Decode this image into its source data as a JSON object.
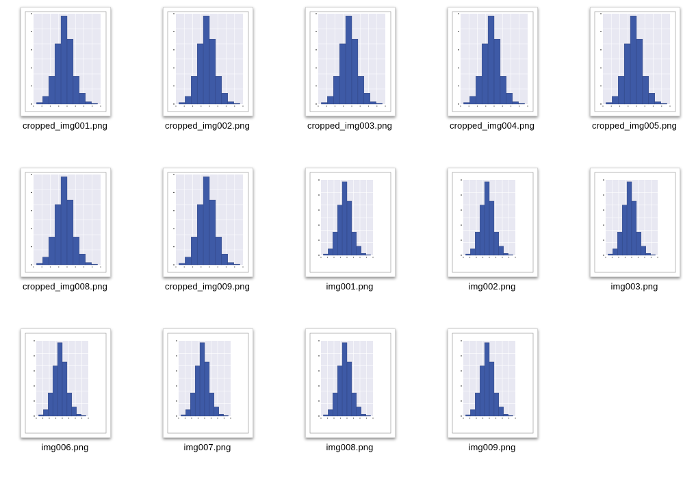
{
  "window": {
    "view_mode": "icon-grid"
  },
  "colors": {
    "bar": "#3e5aa6",
    "bar_edge": "#2b3f7a",
    "plot_bg": "#e8e8f2",
    "grid": "#ffffff",
    "frame": "#8a8a8a"
  },
  "histogram_shape": [
    0.01,
    0.05,
    0.18,
    0.39,
    0.57,
    0.42,
    0.18,
    0.07,
    0.015,
    0.004
  ],
  "files": [
    {
      "name": "cropped_img001.png",
      "variant": "cropped"
    },
    {
      "name": "cropped_img002.png",
      "variant": "cropped"
    },
    {
      "name": "cropped_img003.png",
      "variant": "cropped"
    },
    {
      "name": "cropped_img004.png",
      "variant": "cropped"
    },
    {
      "name": "cropped_img005.png",
      "variant": "cropped"
    },
    {
      "name": "cropped_img008.png",
      "variant": "cropped"
    },
    {
      "name": "cropped_img009.png",
      "variant": "cropped"
    },
    {
      "name": "img001.png",
      "variant": "full"
    },
    {
      "name": "img002.png",
      "variant": "full"
    },
    {
      "name": "img003.png",
      "variant": "full"
    },
    {
      "name": "img006.png",
      "variant": "full"
    },
    {
      "name": "img007.png",
      "variant": "full"
    },
    {
      "name": "img008.png",
      "variant": "full"
    },
    {
      "name": "img009.png",
      "variant": "full"
    }
  ]
}
